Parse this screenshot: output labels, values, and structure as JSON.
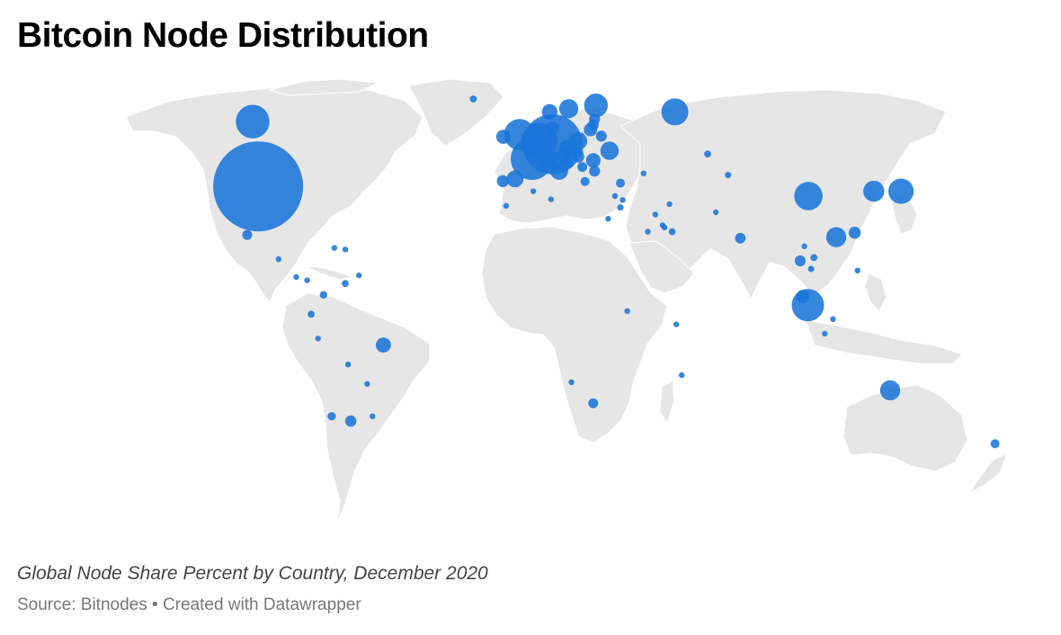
{
  "header": {
    "title": "Bitcoin Node Distribution"
  },
  "footer": {
    "description": "Global Node Share Percent by Country, December 2020",
    "source_label": "Source:",
    "source": "Bitnodes",
    "separator": "•",
    "credit": "Created with Datawrapper"
  },
  "map": {
    "type": "bubble-map",
    "land_color": "#e6e6e6",
    "bubble_color": "#1a75d9",
    "bubble_opacity": 0.88,
    "size_note": "bubble area proportional to node share (value in relative units)",
    "points": [
      {
        "region": "United States",
        "lon": -98,
        "lat": 38,
        "value": 100
      },
      {
        "region": "Canada",
        "lon": -100,
        "lat": 58,
        "value": 14
      },
      {
        "region": "Mexico",
        "lon": -102,
        "lat": 23,
        "value": 1.2
      },
      {
        "region": "Guatemala",
        "lon": -90.5,
        "lat": 15.5,
        "value": 0.3
      },
      {
        "region": "Costa Rica",
        "lon": -84,
        "lat": 10,
        "value": 0.4
      },
      {
        "region": "Panama",
        "lon": -80,
        "lat": 9,
        "value": 0.3
      },
      {
        "region": "Puerto Rico",
        "lon": -66,
        "lat": 18.5,
        "value": 0.4
      },
      {
        "region": "Dominican Rep.",
        "lon": -70,
        "lat": 19,
        "value": 0.3
      },
      {
        "region": "Colombia",
        "lon": -74,
        "lat": 4.5,
        "value": 0.7
      },
      {
        "region": "Venezuela",
        "lon": -66,
        "lat": 8,
        "value": 0.6
      },
      {
        "region": "Trinidad",
        "lon": -61,
        "lat": 10.5,
        "value": 0.3
      },
      {
        "region": "Ecuador",
        "lon": -78.5,
        "lat": -1.5,
        "value": 0.6
      },
      {
        "region": "Peru",
        "lon": -76,
        "lat": -9,
        "value": 0.3
      },
      {
        "region": "Brazil",
        "lon": -52,
        "lat": -11,
        "value": 2.8
      },
      {
        "region": "Bolivia",
        "lon": -65,
        "lat": -17,
        "value": 0.3
      },
      {
        "region": "Paraguay",
        "lon": -58,
        "lat": -23,
        "value": 0.3
      },
      {
        "region": "Chile",
        "lon": -71,
        "lat": -33,
        "value": 0.9
      },
      {
        "region": "Argentina",
        "lon": -64,
        "lat": -34.5,
        "value": 1.6
      },
      {
        "region": "Uruguay",
        "lon": -56,
        "lat": -33,
        "value": 0.4
      },
      {
        "region": "Iceland",
        "lon": -19,
        "lat": 65,
        "value": 0.6
      },
      {
        "region": "Germany",
        "lon": 10,
        "lat": 51,
        "value": 45
      },
      {
        "region": "France",
        "lon": 2.5,
        "lat": 46.5,
        "value": 22
      },
      {
        "region": "United Kingdom",
        "lon": -2,
        "lat": 54,
        "value": 12
      },
      {
        "region": "Ireland",
        "lon": -8,
        "lat": 53.3,
        "value": 2.5
      },
      {
        "region": "Netherlands",
        "lon": 5.3,
        "lat": 52.2,
        "value": 16
      },
      {
        "region": "Belgium",
        "lon": 4.5,
        "lat": 50.6,
        "value": 4
      },
      {
        "region": "Switzerland",
        "lon": 8.2,
        "lat": 46.8,
        "value": 5.5
      },
      {
        "region": "Austria",
        "lon": 14.5,
        "lat": 47.5,
        "value": 3.2
      },
      {
        "region": "Czechia",
        "lon": 15.5,
        "lat": 49.8,
        "value": 3.5
      },
      {
        "region": "Poland",
        "lon": 19.5,
        "lat": 52,
        "value": 4
      },
      {
        "region": "Sweden",
        "lon": 16,
        "lat": 62,
        "value": 4.5
      },
      {
        "region": "Finland",
        "lon": 26,
        "lat": 63,
        "value": 7
      },
      {
        "region": "Norway",
        "lon": 9,
        "lat": 61,
        "value": 3
      },
      {
        "region": "Denmark",
        "lon": 10,
        "lat": 56,
        "value": 2.2
      },
      {
        "region": "Spain",
        "lon": -3.7,
        "lat": 40.3,
        "value": 3.5
      },
      {
        "region": "Portugal",
        "lon": -8.2,
        "lat": 39.6,
        "value": 1.8
      },
      {
        "region": "Italy",
        "lon": 12.5,
        "lat": 42.8,
        "value": 4
      },
      {
        "region": "Ukraine",
        "lon": 31,
        "lat": 49,
        "value": 4.2
      },
      {
        "region": "Lithuania",
        "lon": 24,
        "lat": 55.5,
        "value": 2.2
      },
      {
        "region": "Latvia",
        "lon": 25,
        "lat": 57,
        "value": 1.5
      },
      {
        "region": "Estonia",
        "lon": 25.5,
        "lat": 58.8,
        "value": 1.5
      },
      {
        "region": "Belarus",
        "lon": 28,
        "lat": 53.5,
        "value": 1.5
      },
      {
        "region": "Romania",
        "lon": 25,
        "lat": 46,
        "value": 2.6
      },
      {
        "region": "Hungary",
        "lon": 19.5,
        "lat": 47.2,
        "value": 1.8
      },
      {
        "region": "Bulgaria",
        "lon": 25.5,
        "lat": 42.7,
        "value": 1.5
      },
      {
        "region": "Serbia",
        "lon": 21,
        "lat": 44,
        "value": 1.2
      },
      {
        "region": "Croatia",
        "lon": 16,
        "lat": 45.2,
        "value": 1
      },
      {
        "region": "Slovakia",
        "lon": 19.5,
        "lat": 48.7,
        "value": 1.2
      },
      {
        "region": "Slovenia",
        "lon": 14.8,
        "lat": 46.1,
        "value": 0.8
      },
      {
        "region": "Greece",
        "lon": 22,
        "lat": 39.5,
        "value": 1
      },
      {
        "region": "Russia",
        "lon": 55,
        "lat": 61,
        "value": 9
      },
      {
        "region": "Turkey",
        "lon": 35,
        "lat": 39,
        "value": 1
      },
      {
        "region": "Cyprus",
        "lon": 33,
        "lat": 35,
        "value": 0.4
      },
      {
        "region": "Israel",
        "lon": 35,
        "lat": 31.5,
        "value": 0.5
      },
      {
        "region": "Lebanon",
        "lon": 35.8,
        "lat": 33.8,
        "value": 0.3
      },
      {
        "region": "Georgia",
        "lon": 43.5,
        "lat": 42,
        "value": 0.4
      },
      {
        "region": "Kazakhstan",
        "lon": 67,
        "lat": 48,
        "value": 0.6
      },
      {
        "region": "Kyrgyzstan",
        "lon": 74.5,
        "lat": 41.5,
        "value": 0.5
      },
      {
        "region": "Iran",
        "lon": 53,
        "lat": 32.5,
        "value": 0.3
      },
      {
        "region": "Pakistan",
        "lon": 70,
        "lat": 30,
        "value": 0.4
      },
      {
        "region": "Kuwait",
        "lon": 47.8,
        "lat": 29.3,
        "value": 0.3
      },
      {
        "region": "Bahrain",
        "lon": 50.5,
        "lat": 26,
        "value": 0.3
      },
      {
        "region": "Qatar",
        "lon": 51.2,
        "lat": 25.3,
        "value": 0.3
      },
      {
        "region": "UAE",
        "lon": 54,
        "lat": 24,
        "value": 0.6
      },
      {
        "region": "Saudi Arabia",
        "lon": 45,
        "lat": 24,
        "value": 0.3
      },
      {
        "region": "India",
        "lon": 79,
        "lat": 22,
        "value": 1.4
      },
      {
        "region": "China",
        "lon": 104,
        "lat": 35,
        "value": 10
      },
      {
        "region": "South Korea",
        "lon": 128,
        "lat": 36.5,
        "value": 5.5
      },
      {
        "region": "Japan",
        "lon": 138,
        "lat": 36.5,
        "value": 8
      },
      {
        "region": "Hong Kong",
        "lon": 114.2,
        "lat": 22.3,
        "value": 5
      },
      {
        "region": "Taiwan",
        "lon": 121,
        "lat": 23.7,
        "value": 1.8
      },
      {
        "region": "Vietnam",
        "lon": 106,
        "lat": 16,
        "value": 0.6
      },
      {
        "region": "Thailand",
        "lon": 101,
        "lat": 15,
        "value": 1.5
      },
      {
        "region": "Cambodia",
        "lon": 105,
        "lat": 12.5,
        "value": 0.5
      },
      {
        "region": "Laos",
        "lon": 102.5,
        "lat": 19.5,
        "value": 0.3
      },
      {
        "region": "Malaysia",
        "lon": 102,
        "lat": 4,
        "value": 2.2
      },
      {
        "region": "Singapore",
        "lon": 103.8,
        "lat": 1.3,
        "value": 13
      },
      {
        "region": "Philippines",
        "lon": 122,
        "lat": 12,
        "value": 0.4
      },
      {
        "region": "Indonesia",
        "lon": 113,
        "lat": -3,
        "value": 0.3
      },
      {
        "region": "Indonesia (Java)",
        "lon": 110,
        "lat": -7.5,
        "value": 0.3
      },
      {
        "region": "Australia",
        "lon": 134,
        "lat": -25,
        "value": 5
      },
      {
        "region": "New Zealand",
        "lon": 172.5,
        "lat": -41.5,
        "value": 1
      },
      {
        "region": "Morocco",
        "lon": -7,
        "lat": 32,
        "value": 0.3
      },
      {
        "region": "Algeria",
        "lon": 3,
        "lat": 36.5,
        "value": 0.3
      },
      {
        "region": "Tunisia",
        "lon": 9.5,
        "lat": 34,
        "value": 0.4
      },
      {
        "region": "Egypt",
        "lon": 30.5,
        "lat": 28,
        "value": 0.3
      },
      {
        "region": "Kenya",
        "lon": 37.5,
        "lat": -0.5,
        "value": 0.3
      },
      {
        "region": "Seychelles",
        "lon": 55.5,
        "lat": -4.6,
        "value": 0.3
      },
      {
        "region": "Mauritius",
        "lon": 57.5,
        "lat": -20.3,
        "value": 0.3
      },
      {
        "region": "South Africa",
        "lon": 25,
        "lat": -29,
        "value": 1.2
      },
      {
        "region": "Namibia",
        "lon": 17,
        "lat": -22.5,
        "value": 0.3
      }
    ]
  }
}
